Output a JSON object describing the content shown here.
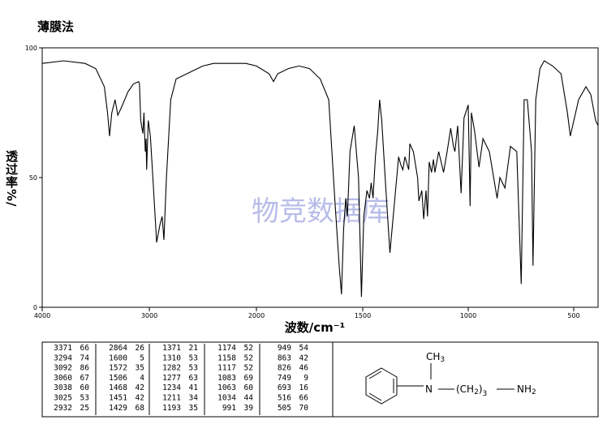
{
  "chart_data": {
    "type": "line",
    "title": "薄膜法",
    "x_label": "波数/cm⁻¹",
    "y_label": "透过率%/",
    "xlim": [
      4000,
      400
    ],
    "ylim": [
      0,
      100
    ],
    "xticks": [
      4000,
      3000,
      2000,
      1500,
      1000,
      500
    ],
    "yticks": [
      0,
      50,
      100
    ],
    "series": [
      {
        "color": "#000000",
        "x": [
          4000,
          3800,
          3600,
          3500,
          3420,
          3390,
          3371,
          3350,
          3320,
          3294,
          3250,
          3200,
          3150,
          3100,
          3092,
          3080,
          3060,
          3050,
          3038,
          3030,
          3025,
          3010,
          2990,
          2960,
          2932,
          2900,
          2880,
          2864,
          2840,
          2800,
          2750,
          2700,
          2600,
          2500,
          2400,
          2200,
          2100,
          2000,
          1940,
          1920,
          1900,
          1850,
          1800,
          1750,
          1700,
          1660,
          1630,
          1610,
          1600,
          1590,
          1580,
          1572,
          1560,
          1540,
          1520,
          1506,
          1495,
          1480,
          1468,
          1460,
          1451,
          1440,
          1429,
          1420,
          1410,
          1390,
          1371,
          1350,
          1330,
          1320,
          1310,
          1300,
          1282,
          1277,
          1260,
          1240,
          1234,
          1220,
          1211,
          1200,
          1193,
          1185,
          1174,
          1165,
          1158,
          1140,
          1117,
          1100,
          1083,
          1070,
          1063,
          1050,
          1034,
          1020,
          1000,
          991,
          985,
          970,
          949,
          930,
          900,
          863,
          850,
          826,
          800,
          770,
          749,
          735,
          720,
          700,
          693,
          680,
          660,
          640,
          620,
          600,
          560,
          530,
          516,
          505,
          480,
          450,
          430,
          410,
          400
        ],
        "values": [
          94,
          95,
          94,
          92,
          85,
          75,
          66,
          75,
          80,
          74,
          78,
          83,
          86,
          87,
          86,
          72,
          67,
          75,
          60,
          65,
          53,
          72,
          66,
          45,
          25,
          32,
          35,
          26,
          50,
          80,
          88,
          89,
          91,
          93,
          94,
          94,
          94,
          93,
          90,
          87,
          90,
          92,
          93,
          92,
          88,
          80,
          40,
          15,
          5,
          30,
          42,
          35,
          60,
          70,
          50,
          4,
          35,
          45,
          42,
          48,
          42,
          58,
          68,
          80,
          72,
          45,
          21,
          40,
          58,
          55,
          53,
          58,
          53,
          63,
          60,
          50,
          41,
          45,
          34,
          45,
          35,
          56,
          52,
          57,
          52,
          60,
          52,
          60,
          69,
          62,
          60,
          70,
          44,
          73,
          78,
          39,
          75,
          68,
          54,
          65,
          60,
          42,
          50,
          46,
          62,
          60,
          9,
          80,
          80,
          60,
          16,
          80,
          92,
          95,
          94,
          93,
          90,
          75,
          66,
          70,
          80,
          85,
          82,
          72,
          70
        ]
      }
    ]
  },
  "watermark": "物竞数据库",
  "peak_table": [
    [
      [
        "3371",
        "66"
      ],
      [
        "3294",
        "74"
      ],
      [
        "3092",
        "86"
      ],
      [
        "3060",
        "67"
      ],
      [
        "3038",
        "60"
      ],
      [
        "3025",
        "53"
      ],
      [
        "2932",
        "25"
      ]
    ],
    [
      [
        "2864",
        "26"
      ],
      [
        "1600",
        "5"
      ],
      [
        "1572",
        "35"
      ],
      [
        "1506",
        "4"
      ],
      [
        "1468",
        "42"
      ],
      [
        "1451",
        "42"
      ],
      [
        "1429",
        "68"
      ]
    ],
    [
      [
        "1371",
        "21"
      ],
      [
        "1310",
        "53"
      ],
      [
        "1282",
        "53"
      ],
      [
        "1277",
        "63"
      ],
      [
        "1234",
        "41"
      ],
      [
        "1211",
        "34"
      ],
      [
        "1193",
        "35"
      ]
    ],
    [
      [
        "1174",
        "52"
      ],
      [
        "1158",
        "52"
      ],
      [
        "1117",
        "52"
      ],
      [
        "1083",
        "69"
      ],
      [
        "1063",
        "60"
      ],
      [
        "1034",
        "44"
      ],
      [
        "991",
        "39"
      ]
    ],
    [
      [
        "949",
        "54"
      ],
      [
        "863",
        "42"
      ],
      [
        "826",
        "46"
      ],
      [
        "749",
        "9"
      ],
      [
        "693",
        "16"
      ],
      [
        "516",
        "66"
      ],
      [
        "505",
        "70"
      ]
    ]
  ],
  "structure": {
    "methyl": "CH",
    "methyl_n": "3",
    "nitrogen": "N",
    "chain": "(CH",
    "chain_n": "2",
    "chain_close": ")",
    "repeat_n": "3",
    "amine": "NH",
    "amine_n": "2"
  }
}
